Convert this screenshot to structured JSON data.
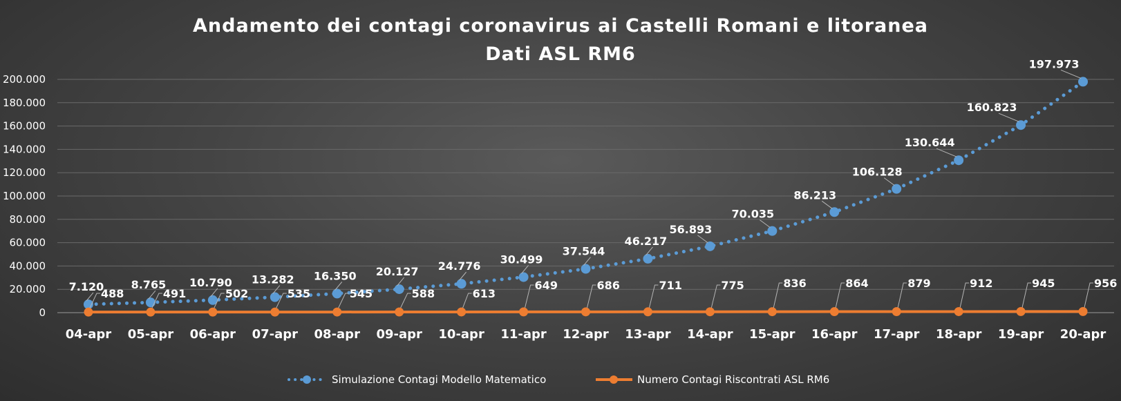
{
  "chart_data": {
    "type": "line",
    "title": "Andamento dei contagi coronavirus ai Castelli Romani e litoranea",
    "subtitle": "Dati ASL RM6",
    "categories": [
      "04-apr",
      "05-apr",
      "06-apr",
      "07-apr",
      "08-apr",
      "09-apr",
      "10-apr",
      "11-apr",
      "12-apr",
      "13-apr",
      "14-apr",
      "15-apr",
      "16-apr",
      "17-apr",
      "18-apr",
      "19-apr",
      "20-apr"
    ],
    "ylim": [
      0,
      200000
    ],
    "yticks": [
      0,
      20000,
      40000,
      60000,
      80000,
      100000,
      120000,
      140000,
      160000,
      180000,
      200000
    ],
    "ytick_labels": [
      "0",
      "20.000",
      "40.000",
      "60.000",
      "80.000",
      "100.000",
      "120.000",
      "140.000",
      "160.000",
      "180.000",
      "200.000"
    ],
    "grid": true,
    "legend_position": "bottom",
    "series": [
      {
        "name": "Simulazione Contagi Modello Matematico",
        "color": "#5b9bd5",
        "style": "dotted-with-markers",
        "values": [
          7120,
          8765,
          10790,
          13282,
          16350,
          20127,
          24776,
          30499,
          37544,
          46217,
          56893,
          70035,
          86213,
          106128,
          130644,
          160823,
          197973
        ],
        "labels": [
          "7.120",
          "8.765",
          "10.790",
          "13.282",
          "16.350",
          "20.127",
          "24.776",
          "30.499",
          "37.544",
          "46.217",
          "56.893",
          "70.035",
          "86.213",
          "106.128",
          "130.644",
          "160.823",
          "197.973"
        ]
      },
      {
        "name": "Numero Contagi Riscontrati ASL RM6",
        "color": "#ed7d31",
        "style": "solid-with-markers",
        "values": [
          488,
          491,
          502,
          535,
          545,
          588,
          613,
          649,
          686,
          711,
          775,
          836,
          864,
          879,
          912,
          945,
          956
        ],
        "labels": [
          "488",
          "491",
          "502",
          "535",
          "545",
          "588",
          "613",
          "649",
          "686",
          "711",
          "775",
          "836",
          "864",
          "879",
          "912",
          "945",
          "956"
        ]
      }
    ]
  }
}
